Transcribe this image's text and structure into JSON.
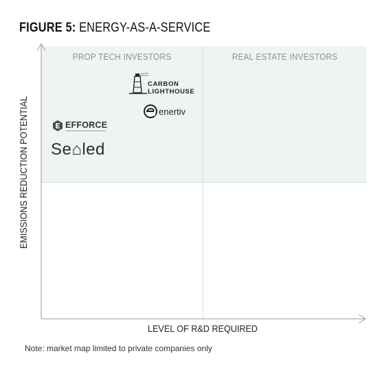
{
  "figure": {
    "title_prefix": "FIGURE 5:",
    "title_main": "ENERGY-AS-A-SERVICE"
  },
  "quadrants": {
    "top_left_label": "PROP TECH INVESTORS",
    "top_right_label": "REAL ESTATE INVESTORS"
  },
  "axes": {
    "x_label": "LEVEL OF R&D REQUIRED",
    "y_label": "EMISSIONS REDUCTION POTENTIAL"
  },
  "companies": {
    "carbon_lighthouse": {
      "line1": "CARBON",
      "line2": "LIGHTHOUSE",
      "icon": "lighthouse-icon"
    },
    "enertiv": {
      "name": "enertiv",
      "icon": "enertiv-e-icon"
    },
    "efforce": {
      "name": "EFFORCE",
      "icon": "efforce-hexagon-icon"
    },
    "sealed": {
      "name": "Se⌂led"
    }
  },
  "note": "Note: market map limited to private companies only",
  "colors": {
    "top_quadrant_fill": "#eef4f4",
    "grid_line": "#d7dede",
    "axis": "#9a9a9a",
    "quadrant_label": "#8c8f93"
  }
}
